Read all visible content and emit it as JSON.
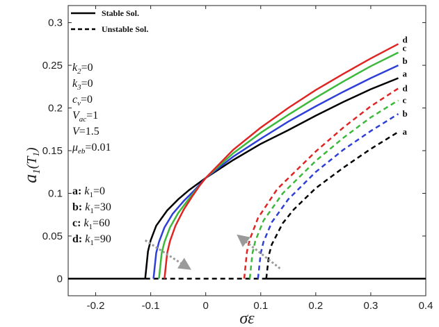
{
  "chart_data": {
    "type": "line",
    "title": "",
    "xlabel": "σε",
    "ylabel": "a1(T1)",
    "ylabel_main": "a",
    "ylabel_sub": "1",
    "ylabel_arg": "(T",
    "ylabel_arg_sub": "1",
    "ylabel_close": ")",
    "xlim": [
      -0.25,
      0.4
    ],
    "ylim": [
      -0.02,
      0.32
    ],
    "xticks": [
      -0.2,
      -0.1,
      0,
      0.1,
      0.2,
      0.3,
      0.4
    ],
    "xtick_labels": [
      "-0.2",
      "-0.1",
      "0",
      "0.1",
      "0.2",
      "0.3",
      "0.4"
    ],
    "yticks": [
      0,
      0.05,
      0.1,
      0.15,
      0.2,
      0.25,
      0.3
    ],
    "ytick_labels": [
      "0",
      "0.05",
      "0.1",
      "0.15",
      "0.2",
      "0.25",
      "0.3"
    ],
    "legend": [
      {
        "label": "Stable Sol.",
        "style": "solid"
      },
      {
        "label": "Unstable Sol.",
        "style": "dashed"
      }
    ],
    "parameters": [
      "k2=0",
      "k3=0",
      "cv=0",
      "Vac=1",
      "V=1.5",
      "μeb=0.01"
    ],
    "parameter_parts": [
      {
        "main": "k",
        "sub": "2",
        "rest": "=0"
      },
      {
        "main": "k",
        "sub": "3",
        "rest": "=0"
      },
      {
        "main": "c",
        "sub": "v",
        "rest": "=0"
      },
      {
        "main": "V",
        "sub": "ac",
        "rest": "=1"
      },
      {
        "main": "V",
        "sub": "",
        "rest": "=1.5"
      },
      {
        "main": "μ",
        "sub": "eb",
        "rest": "=0.01"
      }
    ],
    "key": [
      {
        "id": "a",
        "label": "a: k1=0",
        "k1": "0"
      },
      {
        "id": "b",
        "label": "b: k1=30",
        "k1": "30"
      },
      {
        "id": "c",
        "label": "c: k1=60",
        "k1": "60"
      },
      {
        "id": "d",
        "label": "d: k1=90",
        "k1": "90"
      }
    ],
    "series": [
      {
        "name": "a",
        "k1": 0,
        "color": "#000000",
        "stable_x": [
          -0.11,
          -0.105,
          -0.1,
          -0.09,
          -0.07,
          -0.05,
          -0.03,
          0,
          0.05,
          0.1,
          0.15,
          0.2,
          0.25,
          0.3,
          0.35
        ],
        "stable_y": [
          0,
          0.032,
          0.045,
          0.062,
          0.08,
          0.093,
          0.104,
          0.118,
          0.139,
          0.158,
          0.174,
          0.191,
          0.207,
          0.222,
          0.235
        ],
        "unstable_x": [
          0.11,
          0.115,
          0.12,
          0.14,
          0.16,
          0.2,
          0.25,
          0.3,
          0.35
        ],
        "unstable_y": [
          0,
          0.028,
          0.04,
          0.065,
          0.081,
          0.106,
          0.13,
          0.152,
          0.172
        ]
      },
      {
        "name": "b",
        "k1": 30,
        "color": "#2e3fd8",
        "stable_x": [
          -0.095,
          -0.09,
          -0.085,
          -0.075,
          -0.06,
          -0.04,
          -0.02,
          0,
          0.05,
          0.1,
          0.15,
          0.2,
          0.25,
          0.3,
          0.35
        ],
        "stable_y": [
          0,
          0.03,
          0.043,
          0.06,
          0.076,
          0.091,
          0.104,
          0.118,
          0.143,
          0.164,
          0.184,
          0.202,
          0.219,
          0.235,
          0.25
        ],
        "unstable_x": [
          0.095,
          0.1,
          0.105,
          0.12,
          0.15,
          0.2,
          0.25,
          0.3,
          0.35
        ],
        "unstable_y": [
          0,
          0.03,
          0.043,
          0.066,
          0.093,
          0.125,
          0.151,
          0.173,
          0.193
        ]
      },
      {
        "name": "c",
        "k1": 60,
        "color": "#3cb83a",
        "stable_x": [
          -0.085,
          -0.08,
          -0.075,
          -0.065,
          -0.05,
          -0.03,
          -0.015,
          0,
          0.05,
          0.1,
          0.15,
          0.2,
          0.25,
          0.3,
          0.35
        ],
        "stable_y": [
          0,
          0.03,
          0.043,
          0.06,
          0.077,
          0.094,
          0.106,
          0.118,
          0.147,
          0.171,
          0.192,
          0.212,
          0.231,
          0.249,
          0.265
        ],
        "unstable_x": [
          0.08,
          0.085,
          0.09,
          0.105,
          0.14,
          0.2,
          0.25,
          0.3,
          0.35
        ],
        "unstable_y": [
          0,
          0.03,
          0.044,
          0.068,
          0.1,
          0.138,
          0.165,
          0.189,
          0.209
        ]
      },
      {
        "name": "d",
        "k1": 90,
        "color": "#e02424",
        "stable_x": [
          -0.075,
          -0.07,
          -0.065,
          -0.055,
          -0.04,
          -0.025,
          -0.01,
          0,
          0.05,
          0.1,
          0.15,
          0.2,
          0.25,
          0.3,
          0.35
        ],
        "stable_y": [
          0,
          0.03,
          0.044,
          0.062,
          0.081,
          0.096,
          0.11,
          0.118,
          0.151,
          0.177,
          0.2,
          0.221,
          0.24,
          0.258,
          0.275
        ],
        "unstable_x": [
          0.07,
          0.075,
          0.08,
          0.095,
          0.13,
          0.2,
          0.25,
          0.3,
          0.35
        ],
        "unstable_y": [
          0,
          0.032,
          0.046,
          0.071,
          0.105,
          0.149,
          0.177,
          0.202,
          0.223
        ]
      }
    ],
    "arrows": [
      {
        "from": [
          -0.11,
          0.045
        ],
        "to": [
          -0.03,
          0.012
        ]
      },
      {
        "from": [
          0.135,
          0.012
        ],
        "to": [
          0.06,
          0.05
        ]
      }
    ],
    "grid": false
  }
}
